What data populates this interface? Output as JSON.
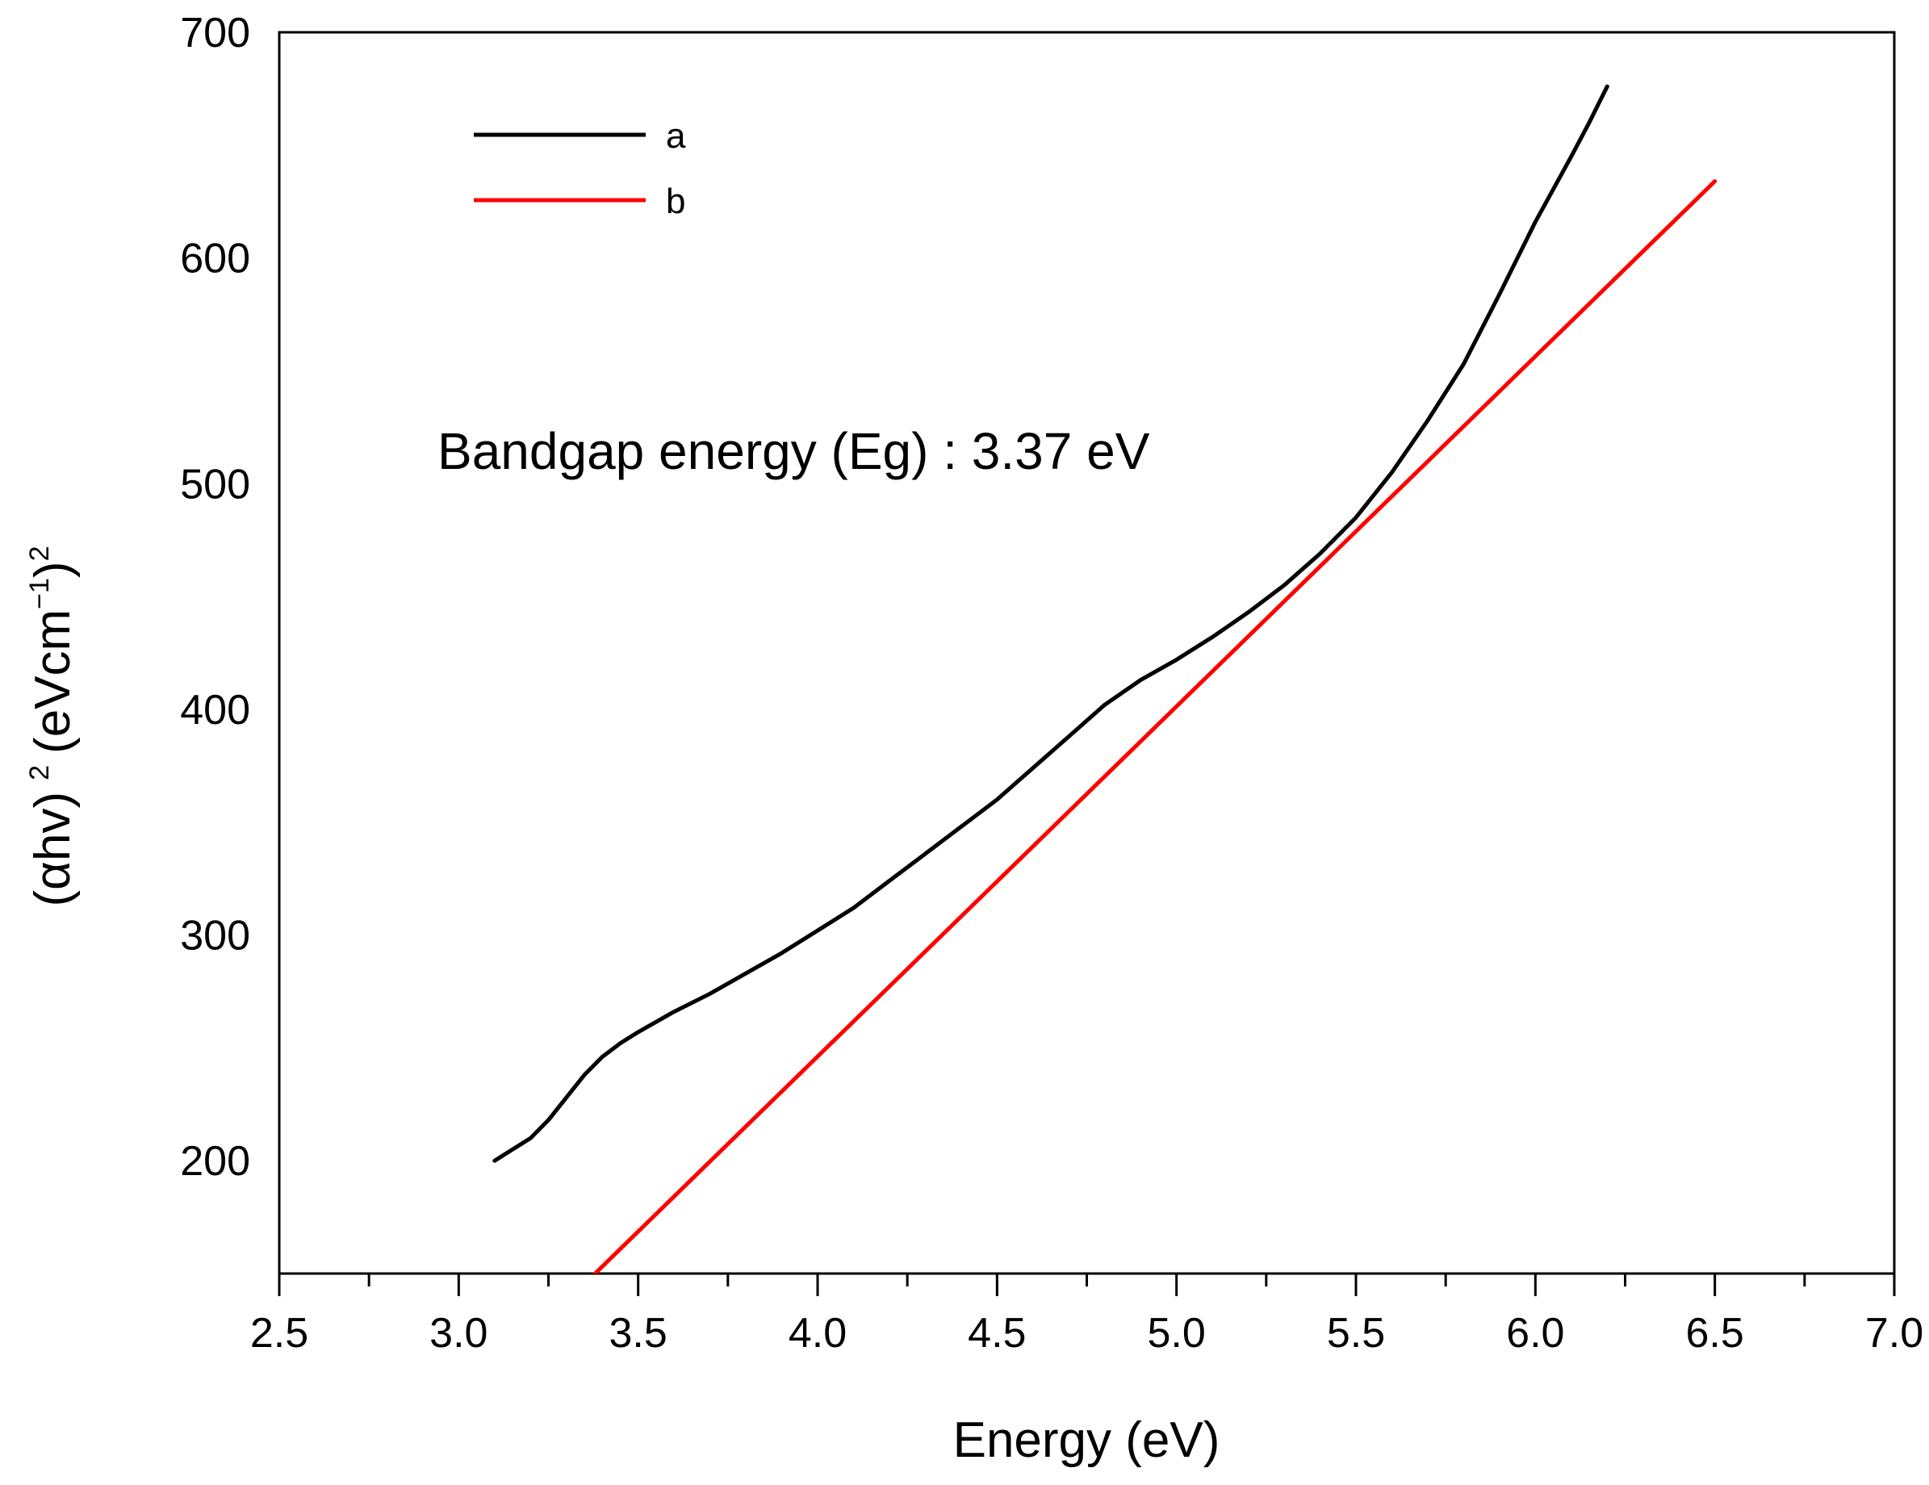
{
  "chart_data": {
    "type": "line",
    "xlabel": "Energy (eV)",
    "ylabel": {
      "open": "(",
      "alpha": "α",
      "hv_close": "hv)",
      "exp1": "2",
      "unit_open": "(eVcm",
      "neg1": "−1",
      "unit_close": ")",
      "exp2": "2"
    },
    "xlim": [
      2.5,
      7.0
    ],
    "ylim": [
      150,
      700
    ],
    "x_ticks": [
      "2.5",
      "3.0",
      "3.5",
      "4.0",
      "4.5",
      "5.0",
      "5.5",
      "6.0",
      "6.5",
      "7.0"
    ],
    "y_ticks": [
      "200",
      "300",
      "400",
      "500",
      "600",
      "700"
    ],
    "annotation": "Bandgap energy (Eg) : 3.37 eV",
    "legend": {
      "position": "top-left"
    },
    "series": [
      {
        "name": "a",
        "color": "#000000",
        "x": [
          3.1,
          3.15,
          3.2,
          3.25,
          3.3,
          3.35,
          3.4,
          3.45,
          3.5,
          3.6,
          3.7,
          3.8,
          3.9,
          4.0,
          4.1,
          4.2,
          4.3,
          4.4,
          4.5,
          4.6,
          4.7,
          4.8,
          4.9,
          5.0,
          5.1,
          5.2,
          5.3,
          5.4,
          5.5,
          5.6,
          5.7,
          5.8,
          5.9,
          6.0,
          6.1,
          6.15,
          6.2
        ],
        "y": [
          200,
          205,
          210,
          218,
          228,
          238,
          246,
          252,
          257,
          266,
          274,
          283,
          292,
          302,
          312,
          324,
          336,
          348,
          360,
          374,
          388,
          402,
          413,
          422,
          432,
          443,
          455,
          469,
          485,
          505,
          528,
          553,
          584,
          616,
          645,
          660,
          676
        ]
      },
      {
        "name": "b",
        "color": "#ff0000",
        "x": [
          3.38,
          6.5
        ],
        "y": [
          150,
          634
        ]
      }
    ]
  }
}
